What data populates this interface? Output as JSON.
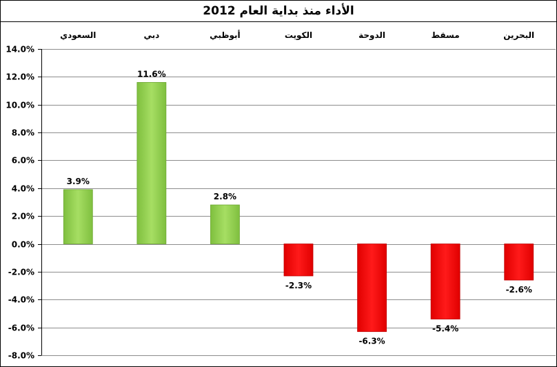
{
  "chart_data": {
    "type": "bar",
    "title": "الأداء منذ بداية العام 2012",
    "categories": [
      "السعودي",
      "دبي",
      "أبوظبي",
      "الكويت",
      "الدوحة",
      "مسقط",
      "البحرين"
    ],
    "values": [
      3.9,
      11.6,
      2.8,
      -2.3,
      -6.3,
      -5.4,
      -2.6
    ],
    "value_labels": [
      "3.9%",
      "11.6%",
      "2.8%",
      "-2.3%",
      "-6.3%",
      "-5.4%",
      "-2.6%"
    ],
    "ylim": [
      -8,
      14
    ],
    "yticks": [
      14,
      12,
      10,
      8,
      6,
      4,
      2,
      0,
      -2,
      -4,
      -6,
      -8
    ],
    "ytick_labels": [
      "14.0%",
      "12.0%",
      "10.0%",
      "8.0%",
      "6.0%",
      "4.0%",
      "2.0%",
      "0.0%",
      "-2.0%",
      "-4.0%",
      "-6.0%",
      "-8.0%"
    ],
    "xlabel": "",
    "ylabel": "",
    "grid": true,
    "legend": "none",
    "category_labels_position": "top",
    "colors": {
      "positive": "#92d050",
      "positive_dark": "#6ea834",
      "negative": "#ff0000",
      "negative_dark": "#c00000",
      "grid": "#8c8c8c",
      "axis": "#000000"
    }
  }
}
